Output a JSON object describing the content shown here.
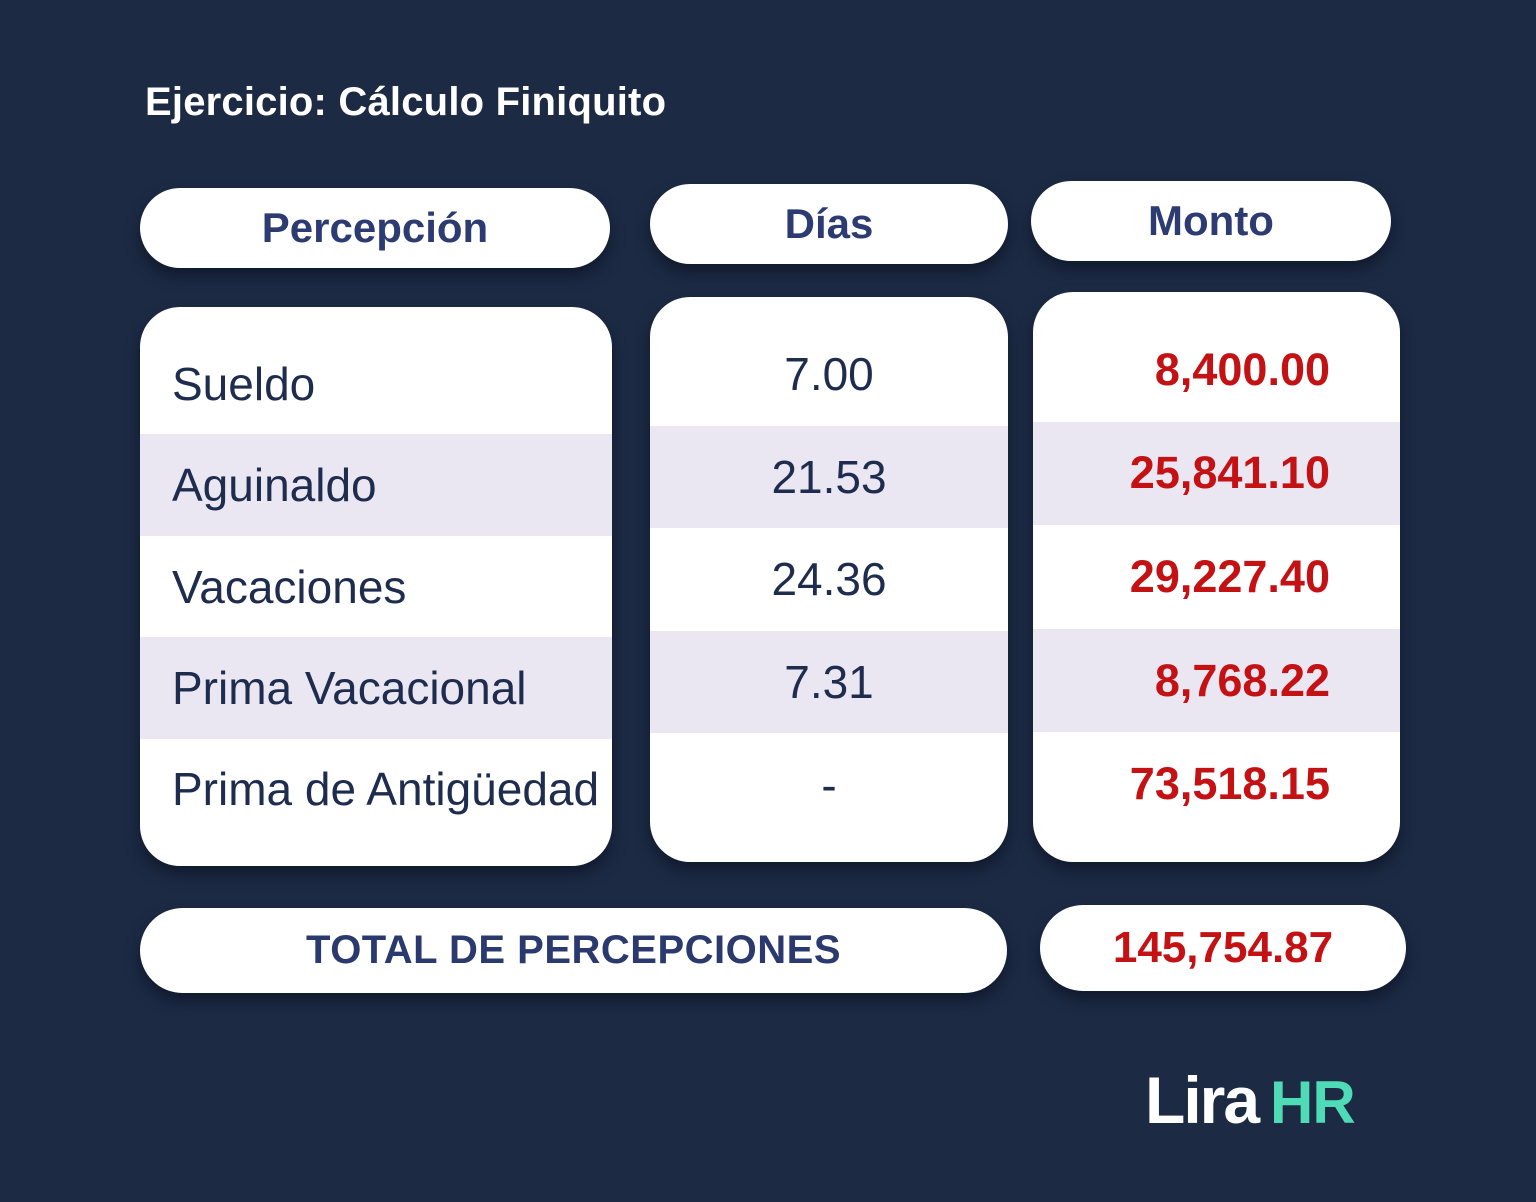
{
  "chart_data": {
    "type": "table",
    "title": "Ejercicio: Cálculo Finiquito",
    "columns": [
      "Percepción",
      "Días",
      "Monto"
    ],
    "rows": [
      {
        "percepcion": "Sueldo",
        "dias": 7.0,
        "monto": 8400.0
      },
      {
        "percepcion": "Aguinaldo",
        "dias": 21.53,
        "monto": 25841.1
      },
      {
        "percepcion": "Vacaciones",
        "dias": 24.36,
        "monto": 29227.4
      },
      {
        "percepcion": "Prima Vacacional",
        "dias": 7.31,
        "monto": 8768.22
      },
      {
        "percepcion": "Prima de Antigüedad",
        "dias": null,
        "monto": 73518.15
      }
    ],
    "total": {
      "label": "TOTAL DE PERCEPCIONES",
      "value": 145754.87
    },
    "layout": "three pill-shaped column cards with alternating white/lavender rows on dark navy background"
  },
  "title": "Ejercicio: Cálculo Finiquito",
  "headers": {
    "percepcion": "Percepción",
    "dias": "Días",
    "monto": "Monto"
  },
  "table": {
    "rows": [
      {
        "percepcion": "Sueldo",
        "dias": "7.00",
        "monto": "8,400.00"
      },
      {
        "percepcion": "Aguinaldo",
        "dias": "21.53",
        "monto": "25,841.10"
      },
      {
        "percepcion": "Vacaciones",
        "dias": "24.36",
        "monto": "29,227.40"
      },
      {
        "percepcion": "Prima Vacacional",
        "dias": "7.31",
        "monto": "8,768.22"
      },
      {
        "percepcion": "Prima de Antigüedad",
        "dias": "-",
        "monto": "73,518.15"
      }
    ]
  },
  "total": {
    "label": "TOTAL DE PERCEPCIONES",
    "amount": "145,754.87"
  },
  "logo": {
    "primary": "Lira",
    "secondary": "HR"
  },
  "colors": {
    "background": "#1c2a44",
    "card": "#ffffff",
    "row_alt": "#eae7f3",
    "text_navy": "#1e2c4e",
    "header_navy": "#2c3b72",
    "amount_red": "#c41114",
    "logo_white": "#ffffff",
    "logo_teal": "#4fdbb5"
  }
}
